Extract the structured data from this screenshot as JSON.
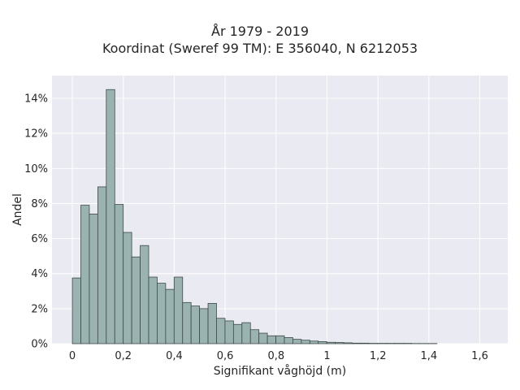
{
  "chart_data": {
    "type": "bar",
    "title": "År 1979 - 2019",
    "subtitle": "Koordinat (Sweref 99 TM): E 356040, N 6212053",
    "xlabel": "Signifikant våghöjd (m)",
    "ylabel": "Andel",
    "x_ticks": [
      "0",
      "0,2",
      "0,4",
      "0,6",
      "0,8",
      "1",
      "1,2",
      "1,4",
      "1,6"
    ],
    "y_ticks": [
      "0%",
      "2%",
      "4%",
      "6%",
      "8%",
      "10%",
      "12%",
      "14%"
    ],
    "xlim": [
      -0.08,
      1.71
    ],
    "ylim": [
      0,
      15.3
    ],
    "grid": true,
    "bin_width": 0.0333,
    "bin_start": 0.0,
    "values": [
      3.75,
      7.9,
      7.4,
      8.95,
      14.5,
      7.95,
      6.35,
      4.95,
      5.6,
      3.8,
      3.45,
      3.1,
      3.8,
      2.35,
      2.15,
      2.0,
      2.3,
      1.45,
      1.3,
      1.1,
      1.2,
      0.8,
      0.6,
      0.45,
      0.45,
      0.35,
      0.25,
      0.2,
      0.15,
      0.12,
      0.08,
      0.07,
      0.05,
      0.03,
      0.03,
      0.02,
      0.02,
      0.02,
      0.02,
      0.02,
      0.01,
      0.01,
      0.01
    ],
    "colors": {
      "bar_fill": "#9ab3b1",
      "bar_edge": "#3e4a49",
      "plot_bg": "#eaeaf2",
      "grid": "#ffffff"
    }
  }
}
